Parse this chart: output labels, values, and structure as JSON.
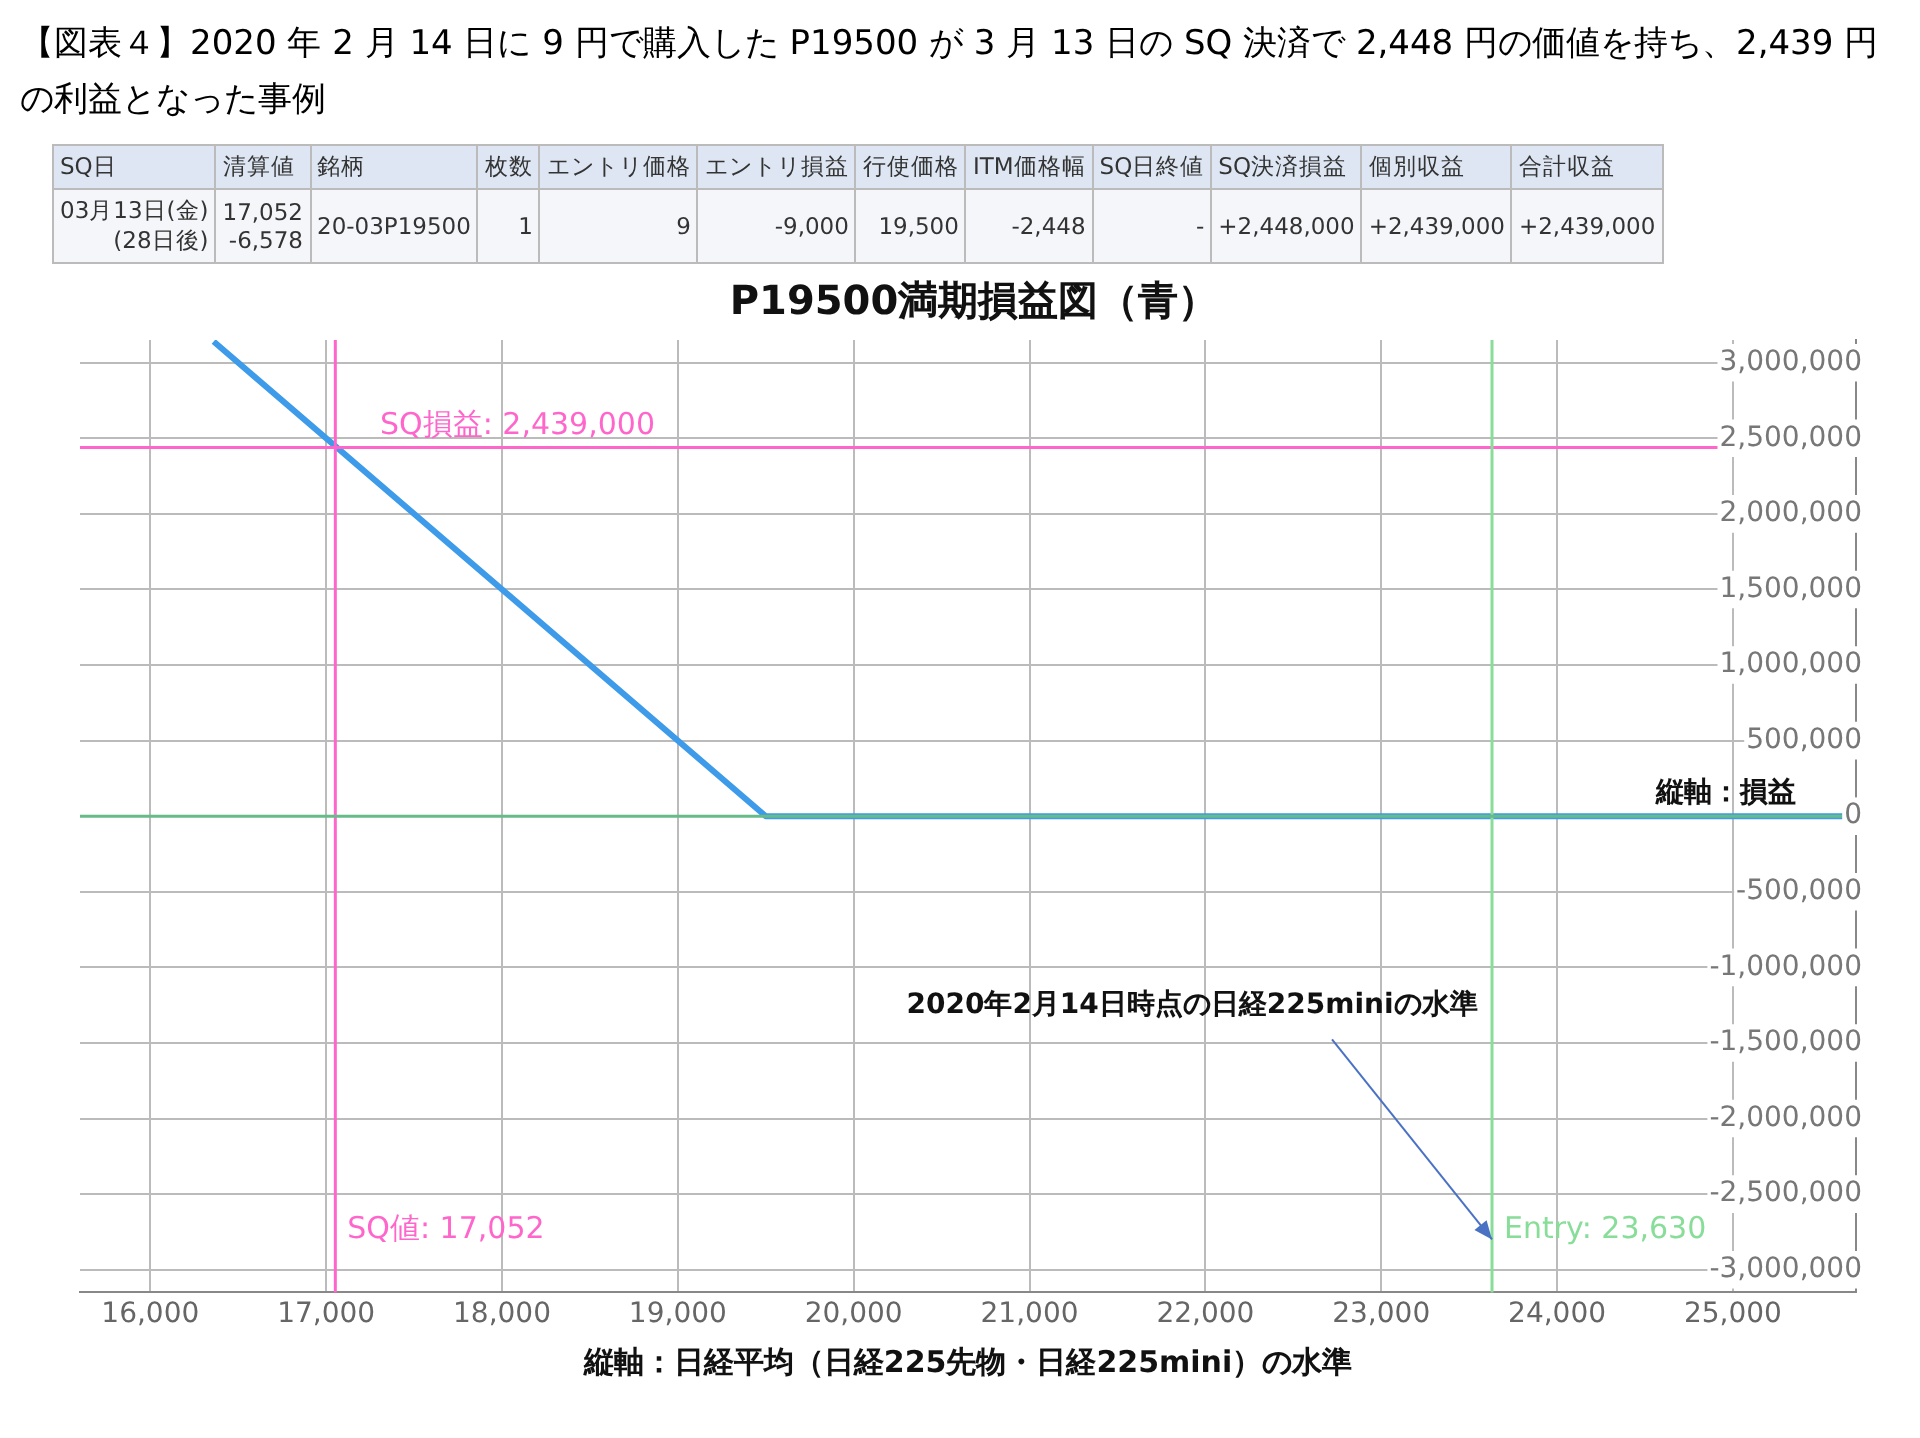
{
  "chart_data": [
    {
      "type": "other",
      "title": "【図表４】2020 年 2 月 14 日に 9 円で購入した P19500 が 3 月 13 日の SQ 決済で 2,448 円の価値を持ち、2,439 円の利益となった事例",
      "categories": [
        "SQ日",
        "清算値",
        "銘柄",
        "枚数",
        "エントリ価格",
        "エントリ損益",
        "行使価格",
        "ITM価格幅",
        "SQ日終値",
        "SQ決済損益",
        "個別収益",
        "合計収益"
      ],
      "cell_labels": [
        [
          "03月13日(金)\n(28日後)",
          "17,052\n-6,578",
          "20-03P19500",
          "1",
          "9",
          "-9,000",
          "19,500",
          "-2,448",
          "-",
          "+2,448,000",
          "+2,439,000",
          "+2,439,000"
        ]
      ]
    },
    {
      "type": "line",
      "title": "P19500満期損益図（青）",
      "xlabel": "縦軸：日経平均（日経225先物・日経225mini）の水準",
      "ylabel": "縦軸：損益",
      "series": [
        {
          "color": "#3d9be9",
          "x": [
            16360,
            19500,
            25700
          ],
          "values": [
            3140000,
            0,
            0
          ]
        }
      ],
      "xlim": [
        15600,
        25700
      ],
      "ylim": [
        -3150000,
        3150000
      ],
      "xticks": [
        {
          "value": 16000,
          "label": "16,000"
        },
        {
          "value": 17000,
          "label": "17,000"
        },
        {
          "value": 18000,
          "label": "18,000"
        },
        {
          "value": 19000,
          "label": "19,000"
        },
        {
          "value": 20000,
          "label": "20,000"
        },
        {
          "value": 21000,
          "label": "21,000"
        },
        {
          "value": 22000,
          "label": "22,000"
        },
        {
          "value": 23000,
          "label": "23,000"
        },
        {
          "value": 24000,
          "label": "24,000"
        },
        {
          "value": 25000,
          "label": "25,000"
        }
      ],
      "yticks": [
        {
          "value": -3000000,
          "label": "-3,000,000"
        },
        {
          "value": -2500000,
          "label": "-2,500,000"
        },
        {
          "value": -2000000,
          "label": "-2,000,000"
        },
        {
          "value": -1500000,
          "label": "-1,500,000"
        },
        {
          "value": -1000000,
          "label": "-1,000,000"
        },
        {
          "value": -500000,
          "label": "-500,000"
        },
        0,
        {
          "value": 500000,
          "label": "500,000"
        },
        {
          "value": 1000000,
          "label": "1,000,000"
        },
        {
          "value": 1500000,
          "label": "1,500,000"
        },
        {
          "value": 2000000,
          "label": "2,000,000"
        },
        {
          "value": 2500000,
          "label": "2,500,000"
        },
        {
          "value": 3000000,
          "label": "3,000,000"
        }
      ],
      "ref_lines": [
        {
          "axis": "y",
          "value": 2439000,
          "label": "SQ損益: 2,439,000",
          "color": "#ff66cc"
        },
        {
          "axis": "x",
          "value": 17052,
          "label": "SQ値: 17,052",
          "color": "#ff66cc"
        },
        {
          "axis": "x",
          "value": 23630,
          "label": "Entry: 23,630",
          "color": "#88dd99"
        },
        {
          "axis": "y",
          "value": 0,
          "color": "#66bb88"
        }
      ],
      "annotations": [
        {
          "text": "2020年2月14日時点の日経225miniの水準",
          "x": 23630,
          "y": -2800000
        }
      ],
      "grid": true,
      "legend": false,
      "marker": "none",
      "line_style": "solid"
    }
  ]
}
